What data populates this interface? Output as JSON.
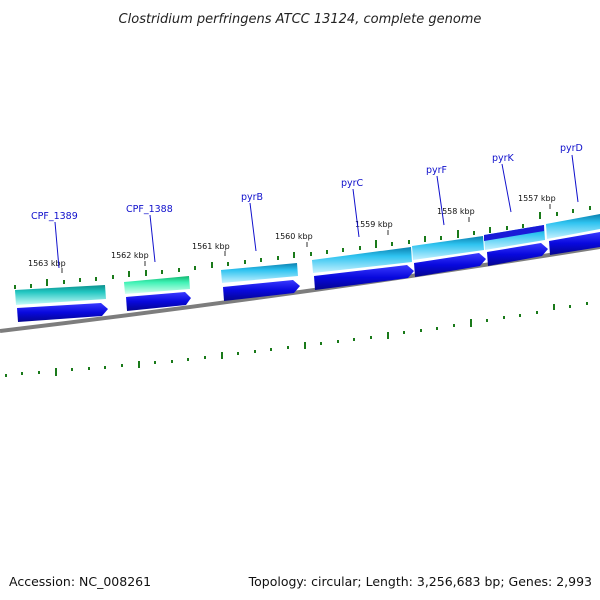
{
  "title": "Clostridium perfringens ATCC 13124, complete genome",
  "footer": {
    "accession": "Accession: NC_008261",
    "topology": "Topology: circular; Length: 3,256,683 bp; Genes: 2,993"
  },
  "kbp_labels": [
    "1563 kbp",
    "1562 kbp",
    "1561 kbp",
    "1560 kbp",
    "1559 kbp",
    "1558 kbp",
    "1557 kbp"
  ],
  "gene_labels": [
    "CPF_1389",
    "CPF_1388",
    "pyrB",
    "pyrC",
    "pyrF",
    "pyrK",
    "pyrD"
  ],
  "colors": {
    "backbone": "#7a7a7a",
    "gc_ticks": "#1a7a1a",
    "cds_arrow": "#0a0ae0",
    "gene_cyan": "#1fb2e6",
    "gene_teal": "#16b9b4",
    "gene_green": "#2ce8a8",
    "label_blue": "#1010cc"
  }
}
